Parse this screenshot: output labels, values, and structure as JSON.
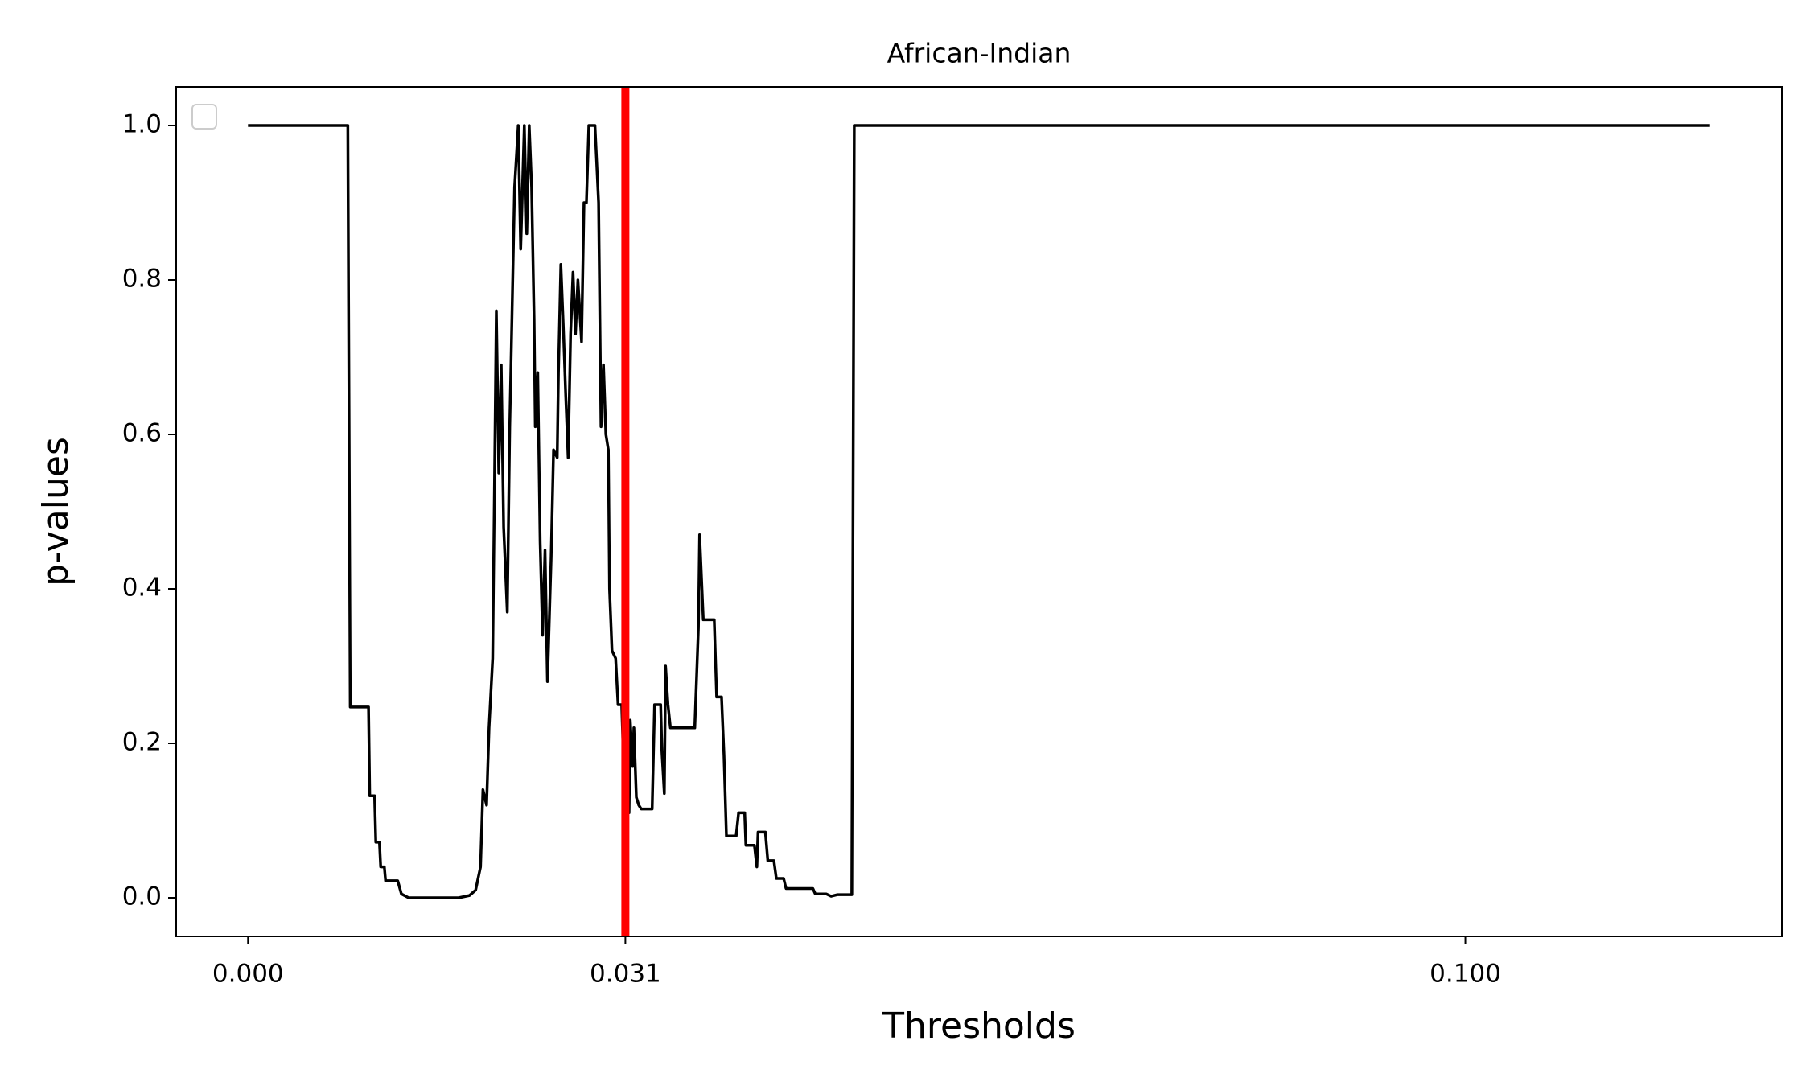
{
  "chart_data": {
    "type": "line",
    "title": "African-Indian",
    "x_label": "Thresholds",
    "y_label": "p-values",
    "x": [
      0,
      0.0082,
      0.0084,
      0.0099,
      0.01,
      0.0104,
      0.0105,
      0.0108,
      0.0109,
      0.0112,
      0.0113,
      0.0123,
      0.0126,
      0.0132,
      0.0173,
      0.0182,
      0.0187,
      0.0191,
      0.0193,
      0.0196,
      0.0198,
      0.0201,
      0.0204,
      0.0206,
      0.0208,
      0.021,
      0.0213,
      0.0215,
      0.0219,
      0.0222,
      0.0224,
      0.0227,
      0.0229,
      0.0231,
      0.0233,
      0.0235,
      0.0236,
      0.0238,
      0.024,
      0.0242,
      0.0244,
      0.0246,
      0.0249,
      0.0251,
      0.0254,
      0.0255,
      0.0257,
      0.0259,
      0.0261,
      0.0263,
      0.0265,
      0.0267,
      0.0269,
      0.0271,
      0.0274,
      0.0276,
      0.0278,
      0.028,
      0.0285,
      0.0288,
      0.029,
      0.0292,
      0.0294,
      0.0296,
      0.0297,
      0.0299,
      0.0302,
      0.0304,
      0.0307,
      0.0309,
      0.0311,
      0.0313,
      0.0314,
      0.0316,
      0.0317,
      0.0319,
      0.0321,
      0.0323,
      0.0332,
      0.0334,
      0.0339,
      0.034,
      0.0342,
      0.0343,
      0.0345,
      0.0347,
      0.0367,
      0.037,
      0.0371,
      0.0374,
      0.0383,
      0.0385,
      0.0389,
      0.0391,
      0.0393,
      0.0401,
      0.0403,
      0.0408,
      0.0409,
      0.0416,
      0.0418,
      0.0419,
      0.0425,
      0.0427,
      0.0432,
      0.0434,
      0.044,
      0.0442,
      0.0464,
      0.0466,
      0.0475,
      0.0479,
      0.0484,
      0.0496,
      0.0498,
      0.1201
    ],
    "values": [
      1.0,
      1.0,
      0.247,
      0.247,
      0.132,
      0.132,
      0.072,
      0.072,
      0.04,
      0.04,
      0.022,
      0.022,
      0.005,
      0.0,
      0.0,
      0.003,
      0.01,
      0.04,
      0.14,
      0.12,
      0.22,
      0.31,
      0.76,
      0.55,
      0.69,
      0.48,
      0.37,
      0.61,
      0.92,
      1.0,
      0.84,
      1.0,
      0.86,
      1.0,
      0.92,
      0.75,
      0.61,
      0.68,
      0.46,
      0.34,
      0.45,
      0.28,
      0.44,
      0.58,
      0.57,
      0.68,
      0.82,
      0.74,
      0.65,
      0.57,
      0.73,
      0.81,
      0.73,
      0.8,
      0.72,
      0.9,
      0.9,
      1.0,
      1.0,
      0.9,
      0.61,
      0.69,
      0.6,
      0.58,
      0.4,
      0.32,
      0.31,
      0.25,
      0.25,
      0.15,
      0.14,
      0.11,
      0.23,
      0.17,
      0.22,
      0.13,
      0.12,
      0.115,
      0.115,
      0.25,
      0.25,
      0.19,
      0.135,
      0.3,
      0.25,
      0.22,
      0.22,
      0.35,
      0.47,
      0.36,
      0.36,
      0.26,
      0.26,
      0.185,
      0.08,
      0.08,
      0.11,
      0.11,
      0.068,
      0.068,
      0.04,
      0.085,
      0.085,
      0.048,
      0.048,
      0.025,
      0.025,
      0.012,
      0.012,
      0.005,
      0.005,
      0.002,
      0.004,
      0.004,
      1.0,
      1.0
    ],
    "color": "#000000",
    "vline": {
      "value": 0.031,
      "color": "#ff0000"
    },
    "xlim": [
      -0.0059,
      0.126
    ],
    "ylim": [
      -0.05,
      1.05
    ],
    "xticks": [
      {
        "value": 0,
        "label": "0.000"
      },
      {
        "value": 0.031,
        "label": "0.031"
      },
      {
        "value": 0.1,
        "label": "0.100"
      }
    ],
    "yticks": [
      {
        "value": 0,
        "label": "0.0"
      },
      {
        "value": 0.2,
        "label": "0.2"
      },
      {
        "value": 0.4,
        "label": "0.4"
      },
      {
        "value": 0.6,
        "label": "0.6"
      },
      {
        "value": 0.8,
        "label": "0.8"
      },
      {
        "value": 1.0,
        "label": "1.0"
      }
    ],
    "grid": false,
    "legend": "upper left"
  }
}
